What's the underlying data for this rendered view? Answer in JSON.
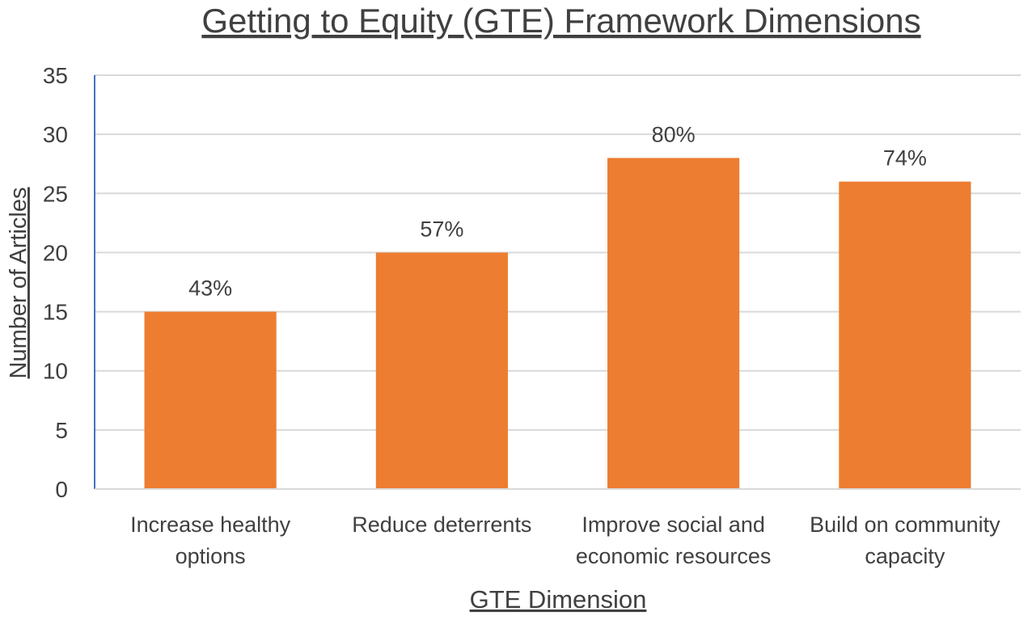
{
  "chart_data": {
    "type": "bar",
    "title": "Getting to Equity (GTE) Framework Dimensions",
    "xlabel": "GTE Dimension",
    "ylabel": "Number of Articles",
    "categories": [
      [
        "Increase healthy",
        "options"
      ],
      [
        "Reduce deterrents"
      ],
      [
        "Improve social and",
        "economic resources"
      ],
      [
        "Build on community",
        "capacity"
      ]
    ],
    "values": [
      15,
      20,
      28,
      26
    ],
    "data_labels": [
      "43%",
      "57%",
      "80%",
      "74%"
    ],
    "ylim": [
      0,
      35
    ],
    "yticks": [
      0,
      5,
      10,
      15,
      20,
      25,
      30,
      35
    ],
    "grid": true,
    "legend": "none"
  },
  "colors": {
    "bar": "#ED7D31",
    "grid": "#D9D9D9",
    "y_axis_line": "#4472C4",
    "x_axis_line": "#D9D9D9",
    "text": "#404040"
  }
}
